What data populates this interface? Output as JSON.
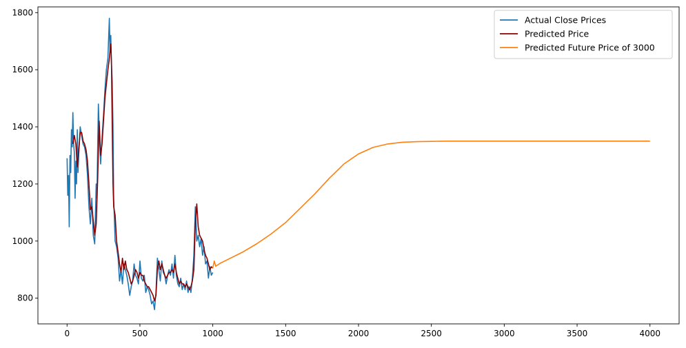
{
  "chart_data": {
    "type": "line",
    "title": "",
    "xlabel": "",
    "ylabel": "",
    "xlim": [
      -200,
      4200
    ],
    "ylim": [
      710,
      1820
    ],
    "xticks": [
      0,
      500,
      1000,
      1500,
      2000,
      2500,
      3000,
      3500,
      4000
    ],
    "yticks": [
      800,
      1000,
      1200,
      1400,
      1600,
      1800
    ],
    "grid": false,
    "legend_position": "top-right",
    "series": [
      {
        "name": "Actual Close Prices",
        "color": "#1f77b4",
        "x": [
          0,
          5,
          10,
          15,
          20,
          25,
          30,
          35,
          40,
          45,
          50,
          55,
          60,
          65,
          70,
          75,
          80,
          90,
          100,
          110,
          120,
          130,
          140,
          150,
          160,
          170,
          180,
          190,
          200,
          205,
          210,
          215,
          220,
          230,
          240,
          250,
          260,
          270,
          280,
          290,
          295,
          300,
          305,
          310,
          315,
          320,
          330,
          340,
          350,
          360,
          370,
          380,
          390,
          400,
          410,
          420,
          430,
          440,
          450,
          460,
          470,
          480,
          490,
          500,
          510,
          520,
          530,
          540,
          550,
          560,
          570,
          580,
          590,
          600,
          610,
          620,
          630,
          640,
          650,
          660,
          670,
          680,
          690,
          700,
          710,
          720,
          730,
          740,
          750,
          760,
          770,
          780,
          790,
          800,
          810,
          820,
          830,
          840,
          850,
          860,
          870,
          880,
          885,
          890,
          900,
          910,
          920,
          930,
          940,
          950,
          960,
          970,
          980,
          990,
          1000
        ],
        "y": [
          1290,
          1160,
          1230,
          1050,
          1300,
          1240,
          1390,
          1330,
          1450,
          1340,
          1310,
          1150,
          1280,
          1200,
          1390,
          1240,
          1300,
          1400,
          1370,
          1340,
          1330,
          1300,
          1230,
          1120,
          1060,
          1150,
          1020,
          990,
          1200,
          1150,
          1330,
          1480,
          1400,
          1270,
          1360,
          1440,
          1530,
          1600,
          1640,
          1780,
          1660,
          1720,
          1620,
          1560,
          1400,
          1150,
          1000,
          980,
          940,
          860,
          900,
          850,
          920,
          900,
          880,
          850,
          810,
          840,
          860,
          920,
          880,
          870,
          850,
          930,
          870,
          860,
          880,
          820,
          840,
          830,
          810,
          780,
          790,
          760,
          820,
          940,
          900,
          860,
          930,
          890,
          880,
          850,
          880,
          900,
          880,
          920,
          870,
          950,
          880,
          850,
          840,
          870,
          830,
          850,
          830,
          860,
          820,
          840,
          820,
          870,
          950,
          1120,
          1070,
          1000,
          1020,
          980,
          1010,
          950,
          980,
          920,
          930,
          870,
          910,
          880,
          890
        ]
      },
      {
        "name": "Predicted Price",
        "color": "#8b0000",
        "x": [
          40,
          50,
          60,
          70,
          80,
          90,
          100,
          110,
          120,
          130,
          140,
          150,
          160,
          170,
          180,
          190,
          200,
          210,
          220,
          230,
          240,
          250,
          260,
          270,
          280,
          290,
          300,
          305,
          310,
          315,
          320,
          330,
          340,
          350,
          360,
          370,
          380,
          390,
          400,
          410,
          420,
          430,
          440,
          450,
          460,
          470,
          480,
          490,
          500,
          510,
          520,
          530,
          540,
          550,
          560,
          570,
          580,
          590,
          600,
          610,
          620,
          630,
          640,
          650,
          660,
          670,
          680,
          690,
          700,
          710,
          720,
          730,
          740,
          750,
          760,
          770,
          780,
          790,
          800,
          810,
          820,
          830,
          840,
          850,
          860,
          870,
          880,
          890,
          900,
          910,
          920,
          930,
          940,
          950,
          960,
          970,
          980,
          990,
          1000
        ],
        "y": [
          1340,
          1370,
          1340,
          1260,
          1320,
          1380,
          1380,
          1350,
          1340,
          1320,
          1280,
          1200,
          1110,
          1120,
          1070,
          1020,
          1060,
          1220,
          1420,
          1300,
          1340,
          1420,
          1500,
          1550,
          1600,
          1640,
          1690,
          1620,
          1400,
          1200,
          1120,
          1090,
          1000,
          960,
          920,
          890,
          940,
          900,
          930,
          900,
          890,
          870,
          850,
          860,
          880,
          900,
          890,
          870,
          890,
          880,
          880,
          860,
          850,
          840,
          840,
          830,
          820,
          810,
          790,
          810,
          900,
          930,
          900,
          920,
          900,
          880,
          870,
          880,
          890,
          890,
          900,
          890,
          920,
          890,
          870,
          850,
          860,
          850,
          850,
          840,
          850,
          840,
          830,
          840,
          860,
          900,
          1060,
          1130,
          1050,
          1020,
          1010,
          1000,
          970,
          950,
          940,
          920,
          900,
          910,
          905
        ]
      },
      {
        "name": "Predicted Future Price of 3000",
        "color": "#ff7f0e",
        "x": [
          1000,
          1010,
          1020,
          1030,
          1050,
          1100,
          1200,
          1300,
          1400,
          1500,
          1600,
          1700,
          1800,
          1900,
          2000,
          2100,
          2200,
          2300,
          2400,
          2500,
          2600,
          2700,
          2800,
          2900,
          3000,
          3200,
          3500,
          3800,
          4000
        ],
        "y": [
          905,
          930,
          912,
          915,
          922,
          935,
          960,
          990,
          1025,
          1065,
          1115,
          1165,
          1220,
          1270,
          1305,
          1328,
          1340,
          1346,
          1348,
          1349,
          1350,
          1350,
          1350,
          1350,
          1350,
          1350,
          1350,
          1350,
          1350
        ]
      }
    ]
  }
}
